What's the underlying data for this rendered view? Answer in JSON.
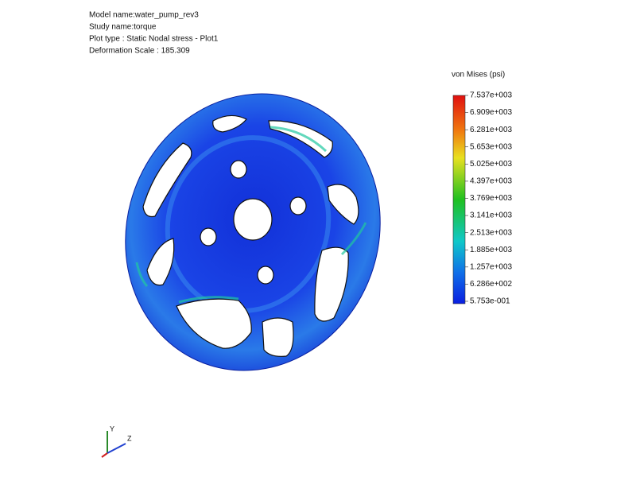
{
  "header": {
    "lines": [
      "Model name:water_pump_rev3",
      "Study name:torque",
      "Plot type : Static Nodal stress - Plot1",
      "Deformation Scale : 185.309"
    ]
  },
  "legend": {
    "title": "von Mises (psi)",
    "labels": [
      "7.537e+003",
      "6.909e+003",
      "6.281e+003",
      "5.653e+003",
      "5.025e+003",
      "4.397e+003",
      "3.769e+003",
      "3.141e+003",
      "2.513e+003",
      "1.885e+003",
      "1.257e+003",
      "6.286e+002",
      "5.753e-001"
    ]
  },
  "triad": {
    "y": "Y",
    "z": "Z"
  }
}
